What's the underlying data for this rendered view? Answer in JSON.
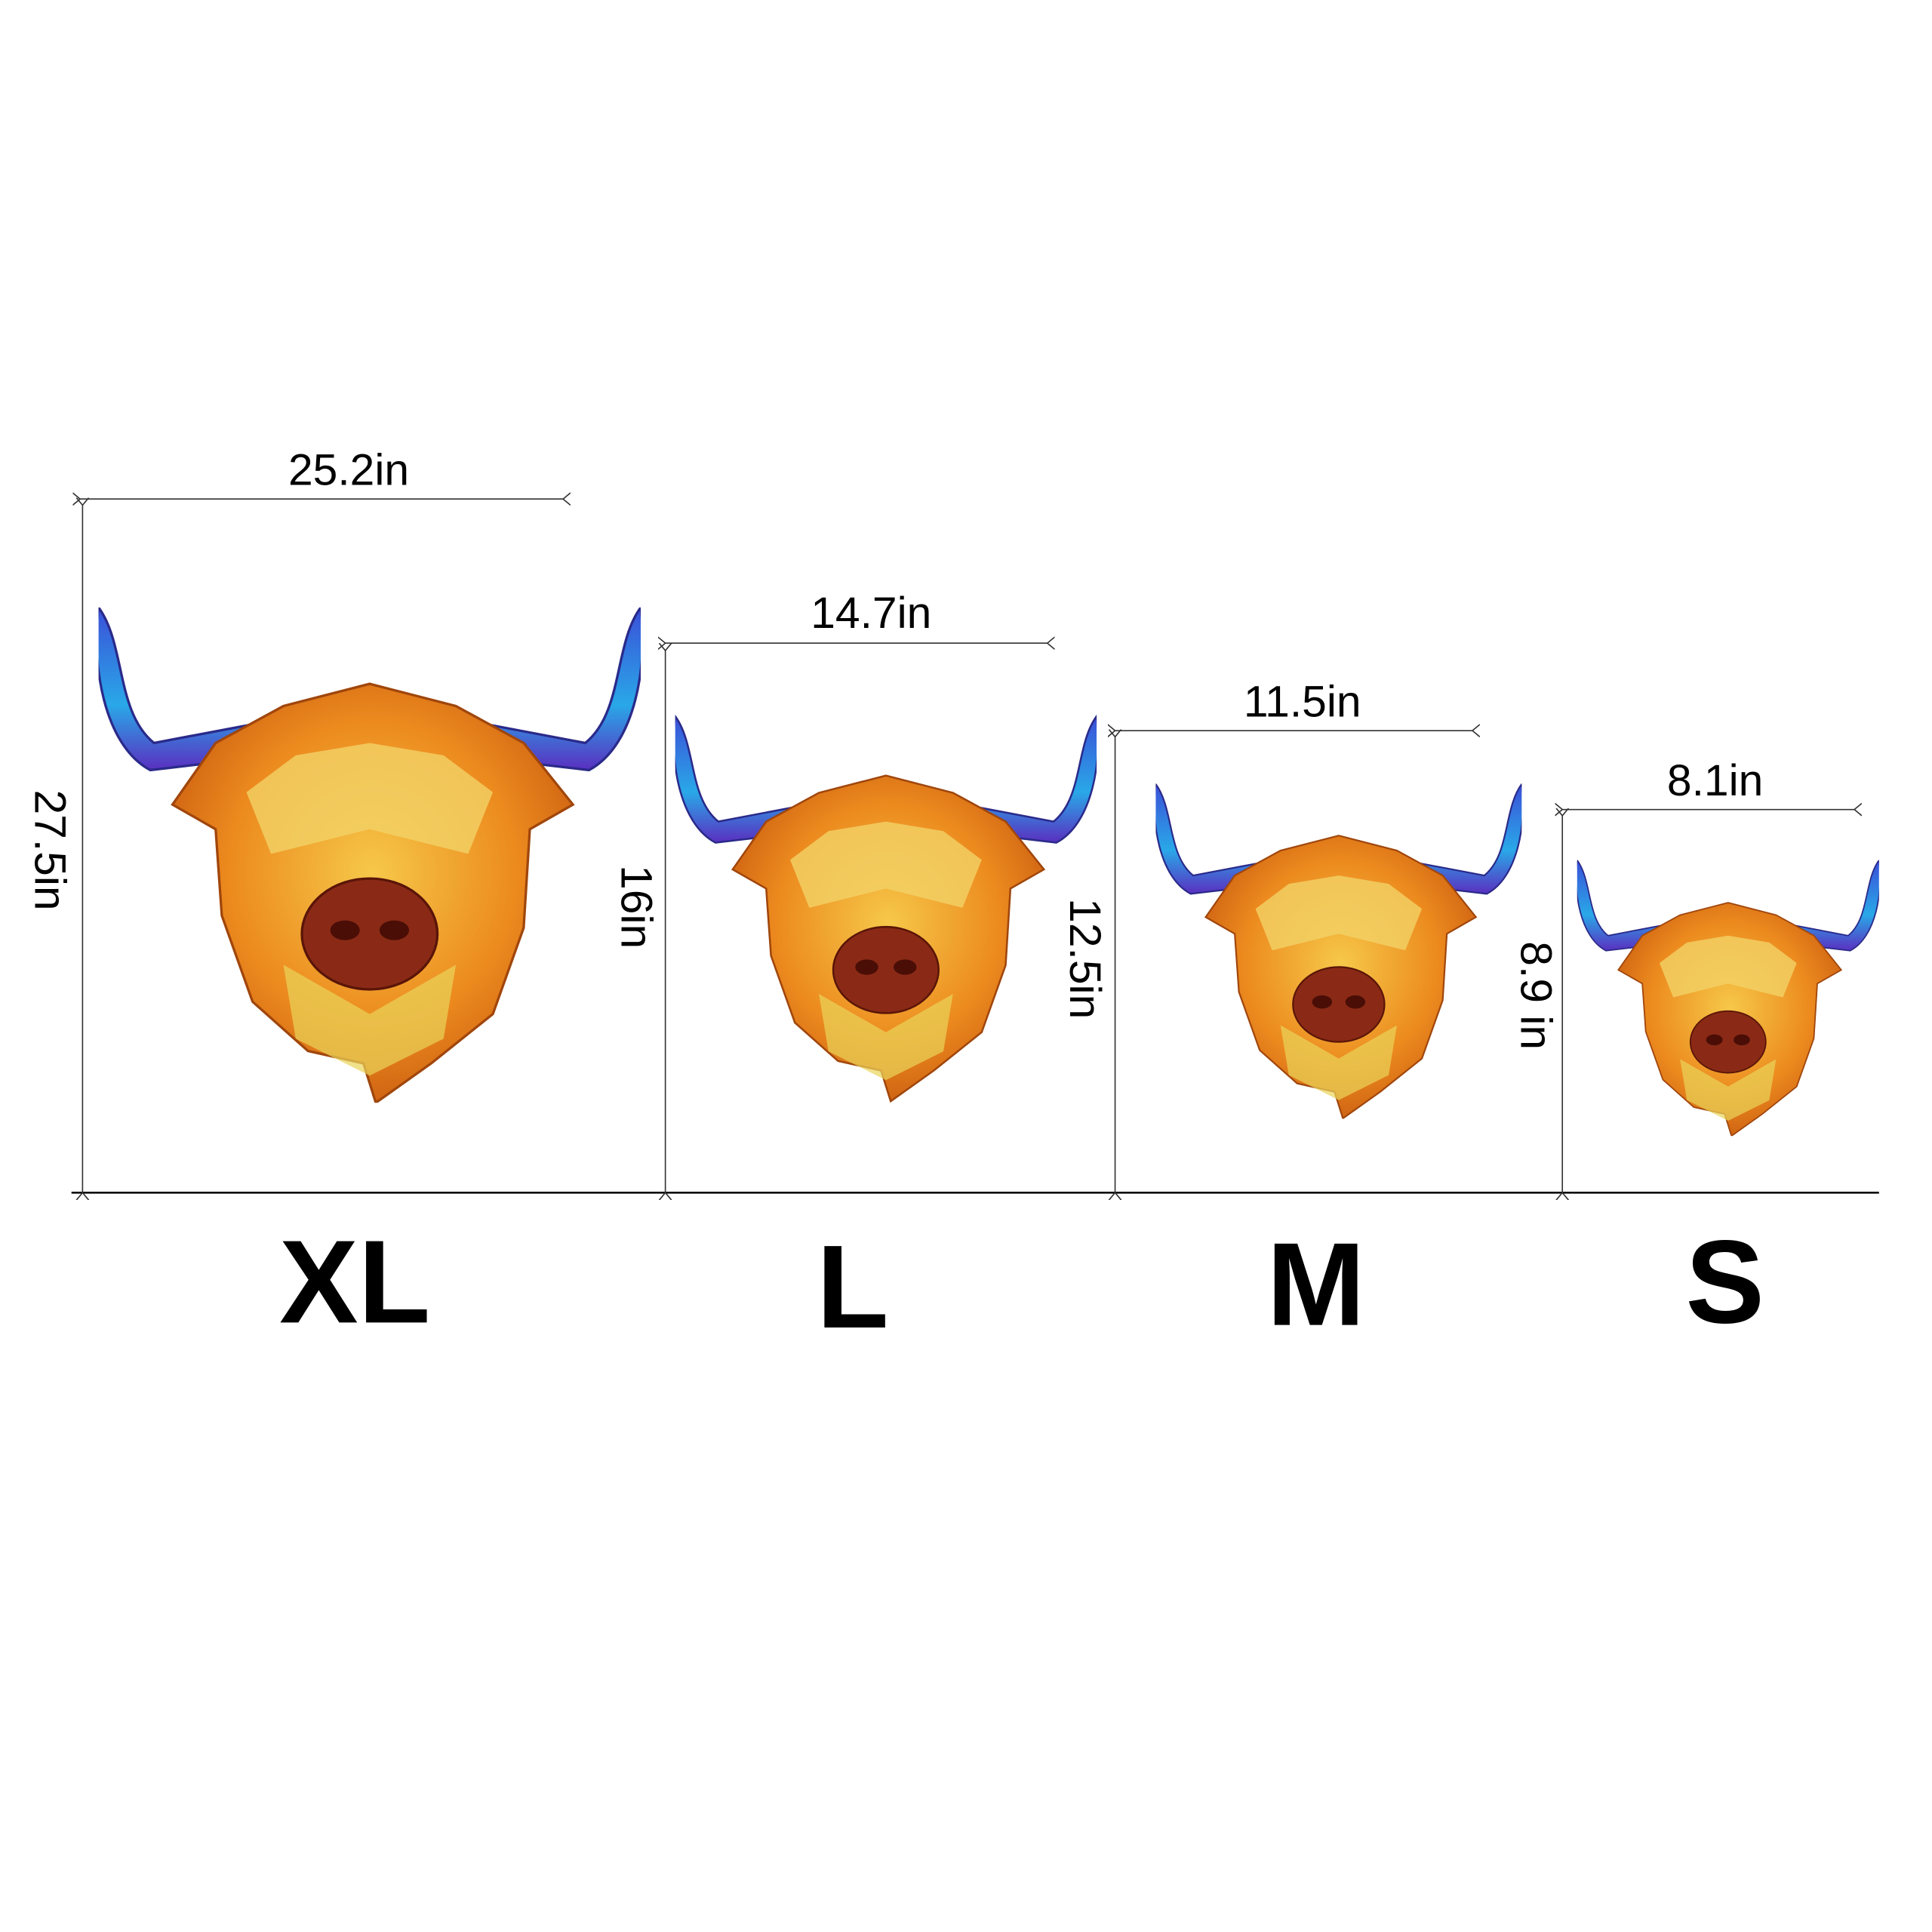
{
  "sizes": [
    {
      "label": "XL",
      "width": "25.2in",
      "height": "27.5in"
    },
    {
      "label": "L",
      "width": "14.7in",
      "height": "16in"
    },
    {
      "label": "M",
      "width": "11.5in",
      "height": "12.5in"
    },
    {
      "label": "S",
      "width": "8.1in",
      "height": "8.9 in"
    }
  ]
}
